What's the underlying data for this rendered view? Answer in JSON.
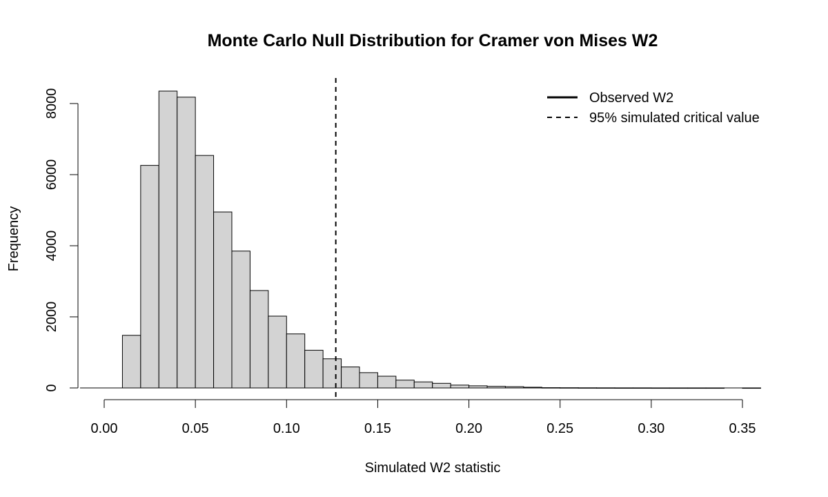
{
  "chart_data": {
    "type": "bar",
    "title": "Monte Carlo Null Distribution for Cramer von Mises W2",
    "xlabel": "Simulated W2 statistic",
    "ylabel": "Frequency",
    "bin_edges": [
      0.0,
      0.01,
      0.02,
      0.03,
      0.04,
      0.05,
      0.06,
      0.07,
      0.08,
      0.09,
      0.1,
      0.11,
      0.12,
      0.13,
      0.14,
      0.15,
      0.16,
      0.17,
      0.18,
      0.19,
      0.2,
      0.21,
      0.22,
      0.23,
      0.24,
      0.25,
      0.26,
      0.27,
      0.28,
      0.29,
      0.3,
      0.31,
      0.32,
      0.33,
      0.34,
      0.35,
      0.36
    ],
    "counts": [
      0,
      1480,
      6260,
      8350,
      8180,
      6540,
      4950,
      3850,
      2740,
      2020,
      1520,
      1060,
      820,
      590,
      430,
      330,
      220,
      170,
      130,
      80,
      60,
      45,
      35,
      20,
      8,
      6,
      4,
      3,
      2,
      2,
      1,
      1,
      1,
      1,
      0,
      1
    ],
    "xlim": [
      0.0,
      0.36
    ],
    "ylim": [
      0,
      8700
    ],
    "xticks": [
      0.0,
      0.05,
      0.1,
      0.15,
      0.2,
      0.25,
      0.3,
      0.35
    ],
    "xtick_labels": [
      "0.00",
      "0.05",
      "0.10",
      "0.15",
      "0.20",
      "0.25",
      "0.30",
      "0.35"
    ],
    "yticks": [
      0,
      2000,
      4000,
      6000,
      8000
    ],
    "ytick_labels": [
      "0",
      "2000",
      "4000",
      "6000",
      "8000"
    ],
    "critical_value": 0.127,
    "bar_fill": "#d3d3d3",
    "bar_stroke": "#000000",
    "legend": {
      "placement": "top-right",
      "entries": [
        {
          "label": "Observed W2",
          "style": "solid"
        },
        {
          "label": "95% simulated critical value",
          "style": "dashed"
        }
      ]
    }
  }
}
